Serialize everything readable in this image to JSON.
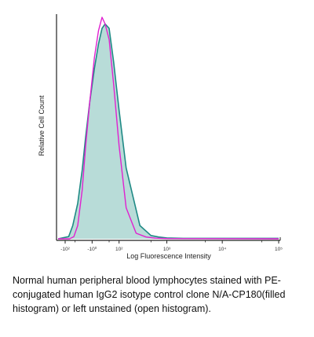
{
  "chart_data": {
    "type": "area",
    "title": "",
    "xlabel": "Log Fluorescence Intensity",
    "ylabel": "Relative Cell Count",
    "x_scale": "biexponential",
    "xlim": [
      -150,
      100000
    ],
    "ylim": [
      0,
      100
    ],
    "x_ticks": [
      {
        "value": -100,
        "label": "-10²"
      },
      {
        "value": 0,
        "label": "-10⁰"
      },
      {
        "value": 100,
        "label": "10²"
      },
      {
        "value": 1000,
        "label": "10³"
      },
      {
        "value": 10000,
        "label": "10⁴"
      },
      {
        "value": 100000,
        "label": "10⁵"
      }
    ],
    "x_minor_ticks": [
      -50,
      50,
      500,
      5000,
      50000
    ],
    "grid": false,
    "legend": "none",
    "series": [
      {
        "style": "filled",
        "color": "#1f8a85",
        "fill": "#b8dcd8",
        "x": [
          -150,
          -80,
          -60,
          -40,
          -25,
          -15,
          -5,
          5,
          15,
          25,
          35,
          50,
          70,
          100,
          150,
          300,
          500,
          700,
          1000,
          2000,
          100000
        ],
        "y": [
          0,
          1,
          6,
          16,
          31,
          46,
          62,
          77,
          88,
          95,
          97,
          95,
          80,
          58,
          32,
          6,
          1.5,
          0.8,
          0.4,
          0.2,
          0.2
        ]
      },
      {
        "style": "open",
        "color": "#e020d0",
        "x": [
          -150,
          -75,
          -55,
          -40,
          -25,
          -15,
          -5,
          5,
          15,
          25,
          35,
          50,
          70,
          100,
          150,
          250,
          400,
          600,
          1000,
          100000
        ],
        "y": [
          0,
          0,
          1,
          6,
          22,
          42,
          62,
          82,
          94,
          100,
          97,
          90,
          70,
          42,
          14,
          2.5,
          0.8,
          0.3,
          0.1,
          0
        ]
      }
    ]
  },
  "caption": "Normal human peripheral blood lymphocytes stained with PE-conjugated human IgG2 isotype control clone N/A-CP180(filled histogram) or left unstained (open histogram)."
}
